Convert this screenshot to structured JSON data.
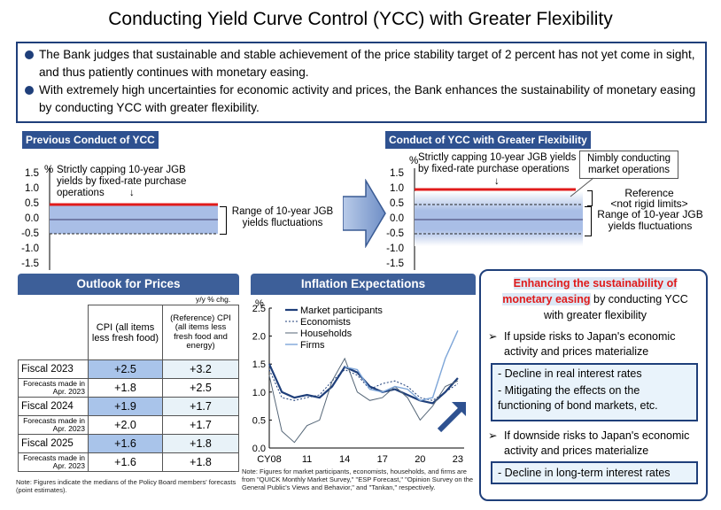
{
  "title": "Conducting Yield Curve Control (YCC) with Greater Flexibility",
  "bullets": [
    "The Bank judges that sustainable and stable achievement of the price stability target of 2 percent has not yet come in sight, and thus patiently continues with monetary easing.",
    "With extremely high uncertainties for economic activity and prices, the Bank enhances the sustainability of monetary easing by conducting YCC with greater flexibility."
  ],
  "left_chart": {
    "header": "Previous Conduct of YCC",
    "pct": "%",
    "yticks": [
      "1.5",
      "1.0",
      "0.5",
      "0.0",
      "-0.5",
      "-1.0",
      "-1.5"
    ],
    "cap_text": "Strictly capping 10-year JGB yields by fixed-rate purchase operations",
    "arrow": "↓",
    "range_text": "Range of 10-year JGB yields fluctuations"
  },
  "right_chart": {
    "header": "Conduct of YCC with Greater Flexibility",
    "pct": "%",
    "yticks": [
      "1.5",
      "1.0",
      "0.5",
      "0.0",
      "-0.5",
      "-1.0",
      "-1.5"
    ],
    "cap_text": "Strictly capping 10-year JGB yields by fixed-rate purchase operations",
    "arrow": "↓",
    "nimbly_text": "Nimbly conducting market operations",
    "reference_text": "Reference",
    "not_rigid_text": "<not rigid limits>",
    "range_text": "Range of 10-year JGB yields fluctuations"
  },
  "outlook": {
    "header": "Outlook for Prices",
    "unit": "y/y % chg.",
    "col1": "CPI (all items less fresh food)",
    "col2_ref": "(Reference) CPI",
    "col2_sub": "(all items less fresh food and energy)",
    "rows": [
      {
        "label": "Fiscal 2023",
        "cpi": "+2.5",
        "core": "+3.2"
      },
      {
        "label": "Forecasts made in Apr. 2023",
        "cpi": "+1.8",
        "core": "+2.5"
      },
      {
        "label": "Fiscal 2024",
        "cpi": "+1.9",
        "core": "+1.7"
      },
      {
        "label": "Forecasts made in Apr. 2023",
        "cpi": "+2.0",
        "core": "+1.7"
      },
      {
        "label": "Fiscal 2025",
        "cpi": "+1.6",
        "core": "+1.8"
      },
      {
        "label": "Forecasts made in Apr. 2023",
        "cpi": "+1.6",
        "core": "+1.8"
      }
    ],
    "note": "Note: Figures indicate the medians of the Policy Board members' forecasts (point estimates)."
  },
  "inflation": {
    "header": "Inflation Expectations",
    "note": "Note: Figures for market participants, economists, households, and firms are from \"QUICK Monthly Market Survey,\" \"ESP Forecast,\" \"Opinion Survey on the General Public's Views and Behavior,\" and \"Tankan,\" respectively."
  },
  "chart_data": {
    "type": "line",
    "title": "Inflation Expectations",
    "ylabel": "%",
    "ylim": [
      0.0,
      2.5
    ],
    "yticks": [
      "2.5",
      "2.0",
      "1.5",
      "1.0",
      "0.5",
      "0.0"
    ],
    "xticks": [
      "CY08",
      "11",
      "14",
      "17",
      "20",
      "23"
    ],
    "x": [
      2008,
      2009,
      2010,
      2011,
      2012,
      2013,
      2014,
      2015,
      2016,
      2017,
      2018,
      2019,
      2020,
      2021,
      2022,
      2023
    ],
    "series": [
      {
        "name": "Market participants",
        "values": [
          1.5,
          1.0,
          0.9,
          0.95,
          0.9,
          1.1,
          1.45,
          1.35,
          1.1,
          1.0,
          1.05,
          0.95,
          0.85,
          0.8,
          1.0,
          1.25
        ]
      },
      {
        "name": "Economists",
        "values": [
          1.4,
          0.9,
          0.85,
          0.9,
          0.95,
          1.2,
          1.4,
          1.3,
          1.05,
          1.15,
          1.2,
          1.1,
          0.9,
          0.85,
          1.0,
          1.15
        ]
      },
      {
        "name": "Households",
        "values": [
          1.3,
          0.3,
          0.1,
          0.4,
          0.5,
          1.2,
          1.6,
          1.0,
          0.85,
          0.9,
          1.1,
          0.9,
          0.5,
          0.75,
          1.1,
          1.2
        ]
      },
      {
        "name": "Firms",
        "values": [
          null,
          null,
          null,
          null,
          null,
          null,
          1.45,
          1.4,
          1.05,
          1.0,
          1.1,
          1.05,
          0.85,
          0.9,
          1.6,
          2.1
        ]
      }
    ]
  },
  "enhance": {
    "title_red": "Enhancing the sustainability of monetary easing",
    "title_rest": " by conducting YCC with greater flexibility",
    "upside": "If upside risks to Japan's economic activity and prices materialize",
    "upside_items": [
      "- Decline in real interest rates",
      "- Mitigating the effects on the functioning of bond markets, etc."
    ],
    "downside": "If downside risks to Japan's economic activity and prices materialize",
    "downside_item": "- Decline in long-term interest rates",
    "arrow_char": "➢"
  },
  "colors": {
    "navy": "#1f3f7a",
    "red": "#e01b1b",
    "band": "#a9bee6"
  }
}
